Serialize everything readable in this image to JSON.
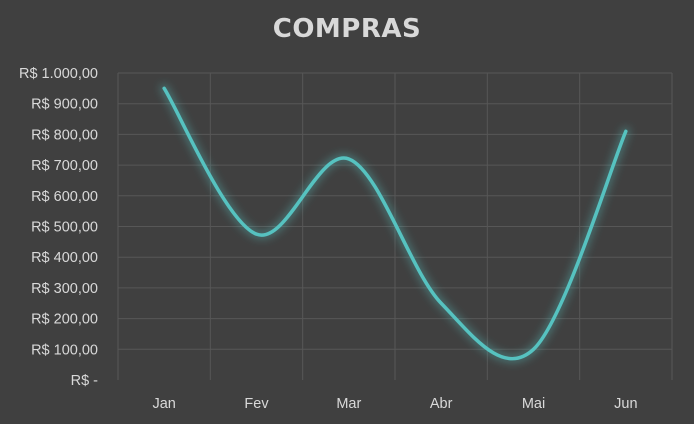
{
  "chart_data": {
    "type": "line",
    "title": "COMPRAS",
    "categories": [
      "Jan",
      "Fev",
      "Mar",
      "Abr",
      "Mai",
      "Jun"
    ],
    "series": [
      {
        "values": [
          950,
          475,
          720,
          250,
          100,
          810
        ]
      }
    ],
    "y_tick_labels": [
      "R$ -",
      "R$ 100,00",
      "R$ 200,00",
      "R$ 300,00",
      "R$ 400,00",
      "R$ 500,00",
      "R$ 600,00",
      "R$ 700,00",
      "R$ 800,00",
      "R$ 900,00",
      "R$ 1.000,00"
    ],
    "ylim": [
      0,
      1000
    ],
    "y_step": 100,
    "xlabel": "",
    "ylabel": "",
    "grid": true,
    "smooth": true,
    "line_color": "#56c2c0",
    "background_color": "#404040",
    "grid_color": "#575757",
    "text_color": "#d9d9d9"
  }
}
